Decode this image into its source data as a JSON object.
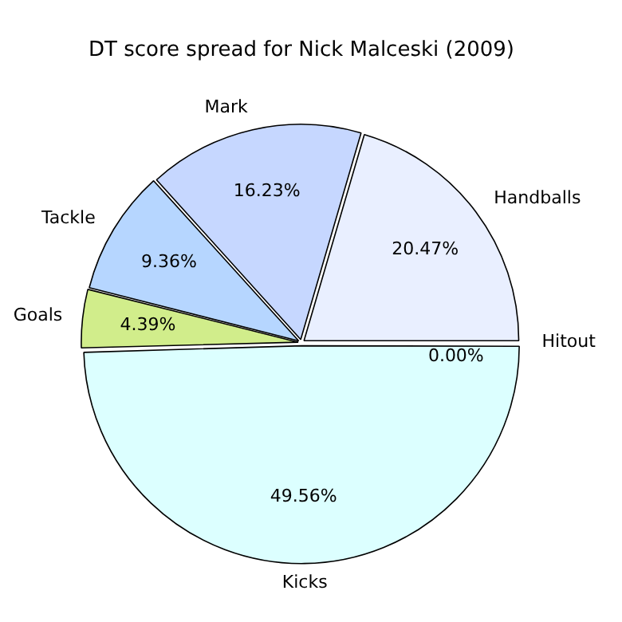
{
  "chart_data": {
    "type": "pie",
    "title": "DT score spread for Nick Malceski (2009)",
    "categories": [
      "Hitout",
      "Handballs",
      "Mark",
      "Tackle",
      "Goals",
      "Kicks"
    ],
    "values": [
      0.0,
      20.47,
      16.23,
      9.36,
      4.39,
      49.56
    ],
    "value_labels": [
      "0.00%",
      "20.47%",
      "16.23%",
      "9.36%",
      "4.39%",
      "49.56%"
    ],
    "colors": [
      "#ffffff",
      "#e9efff",
      "#c6d7ff",
      "#b6d6ff",
      "#d1ed8b",
      "#dcffff"
    ],
    "legend": false
  }
}
